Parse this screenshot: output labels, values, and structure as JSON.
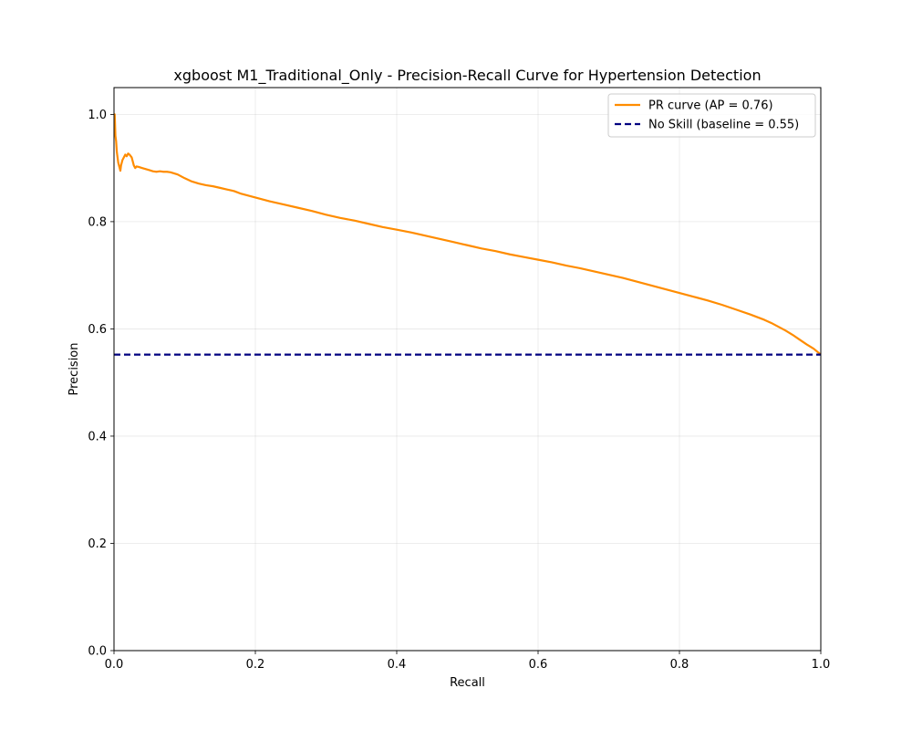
{
  "chart_data": {
    "type": "line",
    "title": "xgboost M1_Traditional_Only - Precision-Recall Curve for Hypertension Detection",
    "xlabel": "Recall",
    "ylabel": "Precision",
    "xlim": [
      0.0,
      1.0
    ],
    "ylim": [
      0.0,
      1.05
    ],
    "xticks": [
      "0.0",
      "0.2",
      "0.4",
      "0.6",
      "0.8",
      "1.0"
    ],
    "yticks": [
      "0.0",
      "0.2",
      "0.4",
      "0.6",
      "0.8",
      "1.0"
    ],
    "grid": true,
    "legend_position": "top-right",
    "series": [
      {
        "name": "PR curve (AP = 0.76)",
        "color": "#ff8c00",
        "style": "solid",
        "x": [
          0.0,
          0.001,
          0.002,
          0.003,
          0.004,
          0.005,
          0.006,
          0.007,
          0.008,
          0.009,
          0.01,
          0.012,
          0.014,
          0.016,
          0.018,
          0.02,
          0.022,
          0.025,
          0.028,
          0.03,
          0.032,
          0.035,
          0.04,
          0.045,
          0.05,
          0.055,
          0.06,
          0.065,
          0.07,
          0.075,
          0.08,
          0.09,
          0.1,
          0.11,
          0.12,
          0.13,
          0.14,
          0.15,
          0.16,
          0.17,
          0.18,
          0.2,
          0.22,
          0.24,
          0.26,
          0.28,
          0.3,
          0.32,
          0.34,
          0.36,
          0.38,
          0.4,
          0.42,
          0.44,
          0.46,
          0.48,
          0.5,
          0.52,
          0.54,
          0.56,
          0.58,
          0.6,
          0.62,
          0.64,
          0.66,
          0.68,
          0.7,
          0.72,
          0.74,
          0.76,
          0.78,
          0.8,
          0.82,
          0.84,
          0.86,
          0.88,
          0.9,
          0.92,
          0.93,
          0.94,
          0.95,
          0.96,
          0.97,
          0.98,
          0.99,
          1.0
        ],
        "y": [
          1.0,
          1.0,
          0.96,
          0.95,
          0.93,
          0.92,
          0.91,
          0.905,
          0.9,
          0.895,
          0.905,
          0.915,
          0.92,
          0.925,
          0.922,
          0.927,
          0.925,
          0.92,
          0.905,
          0.9,
          0.903,
          0.902,
          0.9,
          0.898,
          0.896,
          0.894,
          0.893,
          0.894,
          0.893,
          0.893,
          0.892,
          0.888,
          0.881,
          0.875,
          0.871,
          0.868,
          0.866,
          0.863,
          0.86,
          0.857,
          0.852,
          0.845,
          0.838,
          0.832,
          0.826,
          0.82,
          0.813,
          0.807,
          0.802,
          0.796,
          0.79,
          0.785,
          0.78,
          0.774,
          0.768,
          0.762,
          0.756,
          0.75,
          0.745,
          0.739,
          0.734,
          0.729,
          0.724,
          0.718,
          0.713,
          0.707,
          0.701,
          0.695,
          0.688,
          0.681,
          0.674,
          0.667,
          0.66,
          0.653,
          0.645,
          0.636,
          0.627,
          0.617,
          0.611,
          0.604,
          0.597,
          0.589,
          0.58,
          0.571,
          0.563,
          0.552
        ]
      },
      {
        "name": "No Skill (baseline = 0.55)",
        "color": "#000080",
        "style": "dashed",
        "x": [
          0.0,
          1.0
        ],
        "y": [
          0.552,
          0.552
        ]
      }
    ]
  }
}
